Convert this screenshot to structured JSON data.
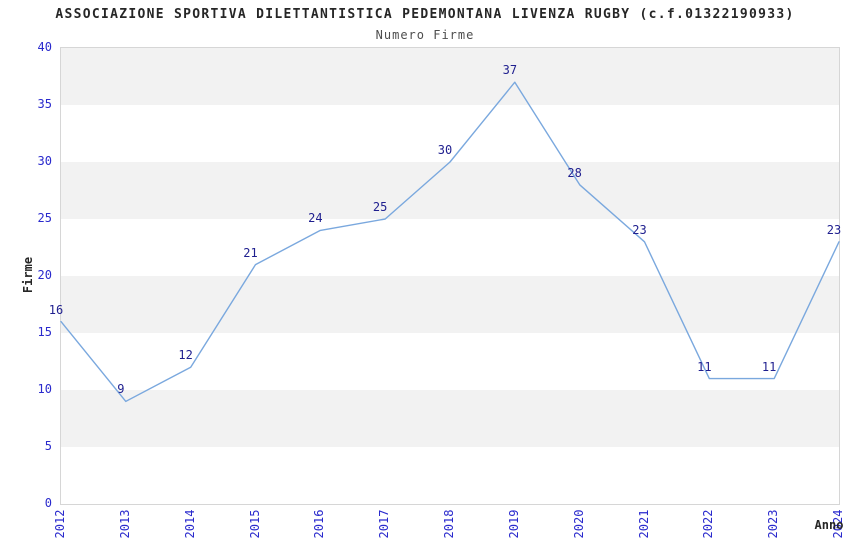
{
  "chart": {
    "title": "ASSOCIAZIONE SPORTIVA DILETTANTISTICA PEDEMONTANA LIVENZA RUGBY (c.f.01322190933)",
    "subtitle": "Numero Firme",
    "ylabel": "Firme",
    "xlabel": "Anno"
  },
  "chart_data": {
    "type": "line",
    "title": "ASSOCIAZIONE SPORTIVA DILETTANTISTICA PEDEMONTANA LIVENZA RUGBY (c.f.01322190933)",
    "subtitle": "Numero Firme",
    "xlabel": "Anno",
    "ylabel": "Firme",
    "categories": [
      "2012",
      "2013",
      "2014",
      "2015",
      "2016",
      "2017",
      "2018",
      "2019",
      "2020",
      "2021",
      "2022",
      "2023",
      "2024"
    ],
    "values": [
      16,
      9,
      12,
      21,
      24,
      25,
      30,
      37,
      28,
      23,
      11,
      11,
      23
    ],
    "ylim": [
      0,
      40
    ],
    "ytick_step": 5,
    "grid": "alternating-horizontal-bands",
    "legend": "none",
    "point_labels_visible": true,
    "colors": {
      "line": "#7aa8de",
      "point_label": "#1f1f8f",
      "tick_label": "#2a2acd",
      "band_gray": "#f2f2f2",
      "band_white": "#ffffff",
      "plot_border": "#d6d6d6",
      "title_text": "#262626"
    }
  }
}
